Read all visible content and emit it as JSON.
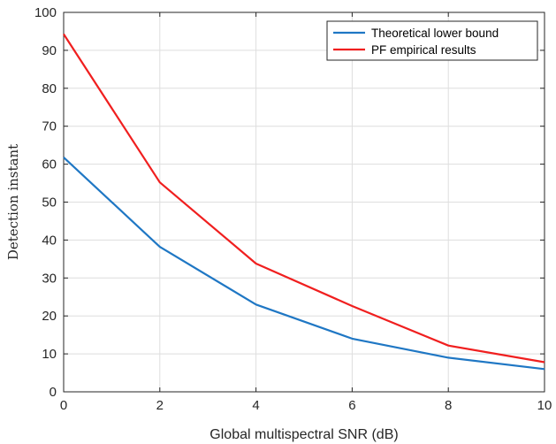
{
  "chart_data": {
    "type": "line",
    "xlabel": "Global multispectral SNR (dB)",
    "ylabel": "Detection instant",
    "xlim": [
      0,
      10
    ],
    "ylim": [
      0,
      100
    ],
    "x_ticks": [
      0,
      2,
      4,
      6,
      8,
      10
    ],
    "y_ticks": [
      0,
      10,
      20,
      30,
      40,
      50,
      60,
      70,
      80,
      90,
      100
    ],
    "grid": true,
    "legend_position": "top-right",
    "x": [
      0,
      2,
      4,
      6,
      8,
      10
    ],
    "series": [
      {
        "name": "Theoretical lower bound",
        "color": "#1f77c4",
        "values": [
          61.8,
          38.2,
          23.0,
          14.0,
          9.0,
          6.0
        ]
      },
      {
        "name": "PF empirical results",
        "color": "#f01f1f",
        "values": [
          94.3,
          55.2,
          33.8,
          22.6,
          12.2,
          7.8
        ]
      }
    ]
  }
}
